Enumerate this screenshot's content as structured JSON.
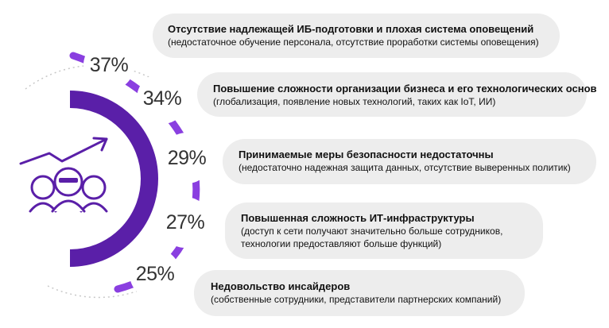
{
  "colors": {
    "accent": "#5a1fa8",
    "accent_light": "#8a3fe0",
    "pill_bg": "#ededed",
    "text": "#111111"
  },
  "icon": "group-of-hackers-with-rising-arrow-icon",
  "items": [
    {
      "percent": "37%",
      "value": 37,
      "title": "Отсутствие надлежащей ИБ-подготовки и плохая система оповещений",
      "lines": [
        "(недостаточное обучение персонала, отсутствие проработки системы оповещения)"
      ]
    },
    {
      "percent": "34%",
      "value": 34,
      "title": "Повышение сложности организации бизнеса и его технологических основ",
      "lines": [
        "(глобализация, появление новых технологий, таких как IoT, ИИ)"
      ]
    },
    {
      "percent": "29%",
      "value": 29,
      "title": "Принимаемые меры безопасности недостаточны",
      "lines": [
        "(недостаточно надежная защита данных, отсутствие выверенных политик)"
      ]
    },
    {
      "percent": "27%",
      "value": 27,
      "title": "Повышенная сложность ИТ-инфраструктуры",
      "lines": [
        "(доступ к сети получают значительно больше сотрудников,",
        "технологии предоставляют больше функций)"
      ]
    },
    {
      "percent": "25%",
      "value": 25,
      "title": "Недовольство инсайдеров",
      "lines": [
        "(собственные сотрудники, представители партнерских компаний)"
      ]
    }
  ]
}
